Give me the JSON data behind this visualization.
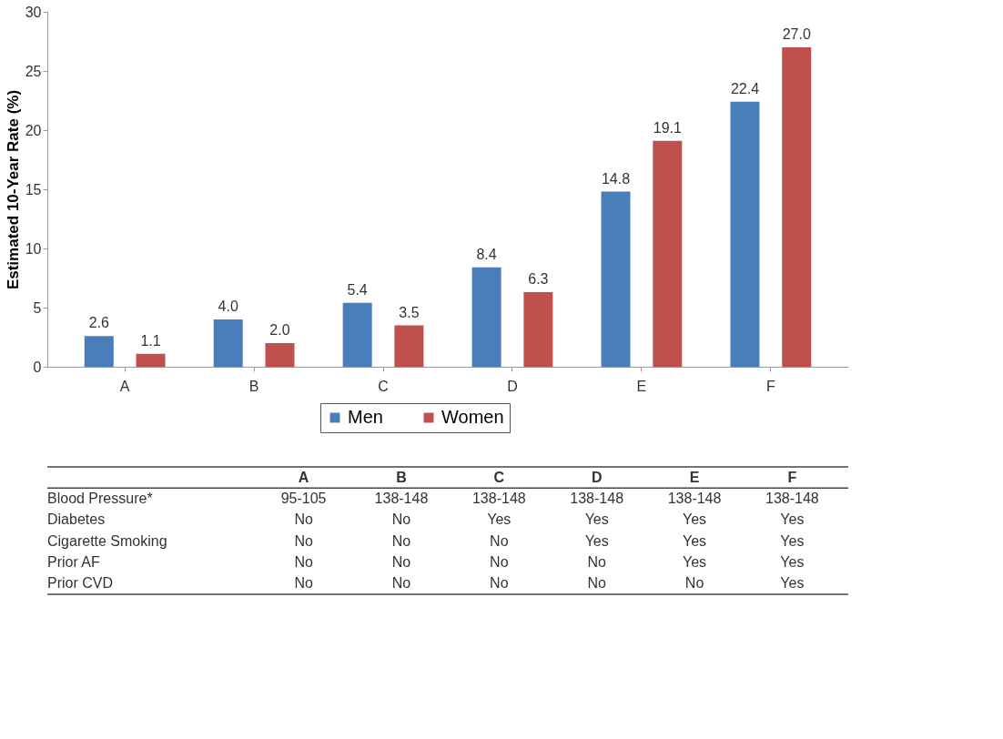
{
  "chart_data": {
    "type": "bar",
    "ylabel": "Estimated 10-Year Rate (%)",
    "categories": [
      "A",
      "B",
      "C",
      "D",
      "E",
      "F"
    ],
    "series": [
      {
        "name": "Men",
        "color": "#4a7ebb",
        "values": [
          2.6,
          4.0,
          5.4,
          8.4,
          14.8,
          22.4
        ],
        "value_labels": [
          "2.6",
          "4.0",
          "5.4",
          "8.4",
          "14.8",
          "22.4"
        ]
      },
      {
        "name": "Women",
        "color": "#c0504d",
        "values": [
          1.1,
          2.0,
          3.5,
          6.3,
          19.1,
          27.0
        ],
        "value_labels": [
          "1.1",
          "2.0",
          "3.5",
          "6.3",
          "19.1",
          "27.0"
        ]
      }
    ],
    "ylim": [
      0,
      30
    ],
    "yticks": [
      0,
      5,
      10,
      15,
      20,
      25,
      30
    ],
    "grid": false,
    "legend": "bottom",
    "annotations": [
      "Blood Pressure*",
      "95-105",
      "138-148",
      "138-148",
      "138-148",
      "138-148",
      "138-148",
      "Diabetes",
      "No",
      "No",
      "Yes",
      "Yes",
      "Yes",
      "Yes",
      "Cigarette Smoking",
      "No",
      "No",
      "No",
      "Yes",
      "Yes",
      "Yes",
      "Prior AF",
      "No",
      "No",
      "No",
      "No",
      "Yes",
      "Yes",
      "Prior CVD",
      "No",
      "No",
      "No",
      "No",
      "No",
      "Yes"
    ]
  }
}
